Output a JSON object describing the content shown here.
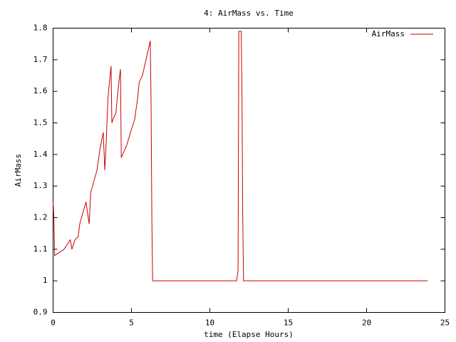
{
  "chart_data": {
    "type": "line",
    "title": "4: AirMass vs. Time",
    "x_label": "time (Elapse Hours)",
    "y_label": "AirMass",
    "x": [
      0,
      0.05,
      0.1,
      0.7,
      1.1,
      1.2,
      1.4,
      1.6,
      1.7,
      2.1,
      2.3,
      2.4,
      2.8,
      3.0,
      3.2,
      3.3,
      3.4,
      3.5,
      3.7,
      3.75,
      3.9,
      4.0,
      4.2,
      4.3,
      4.35,
      4.7,
      5.0,
      5.2,
      5.4,
      5.5,
      5.6,
      5.7,
      6.2,
      6.25,
      6.3,
      6.35,
      11.7,
      11.8,
      11.85,
      12.0,
      12.05,
      12.1,
      12.15,
      23.9
    ],
    "series": [
      {
        "name": "AirMass",
        "color": "#cc0000",
        "values": [
          1.25,
          1.2,
          1.08,
          1.1,
          1.13,
          1.1,
          1.13,
          1.14,
          1.18,
          1.25,
          1.18,
          1.28,
          1.35,
          1.42,
          1.47,
          1.35,
          1.45,
          1.58,
          1.68,
          1.5,
          1.52,
          1.53,
          1.63,
          1.67,
          1.39,
          1.43,
          1.48,
          1.51,
          1.58,
          1.63,
          1.64,
          1.65,
          1.76,
          1.57,
          1.2,
          1.0,
          1.0,
          1.03,
          1.79,
          1.79,
          1.59,
          1.2,
          1.0,
          1.0
        ]
      }
    ],
    "xlim": [
      0,
      25
    ],
    "xticks": [
      0,
      5,
      10,
      15,
      20,
      25
    ],
    "ylim": [
      0.9,
      1.8
    ],
    "yticks": [
      0.9,
      1,
      1.1,
      1.2,
      1.3,
      1.4,
      1.5,
      1.6,
      1.7,
      1.8
    ],
    "grid": false,
    "legend": "top-right"
  }
}
